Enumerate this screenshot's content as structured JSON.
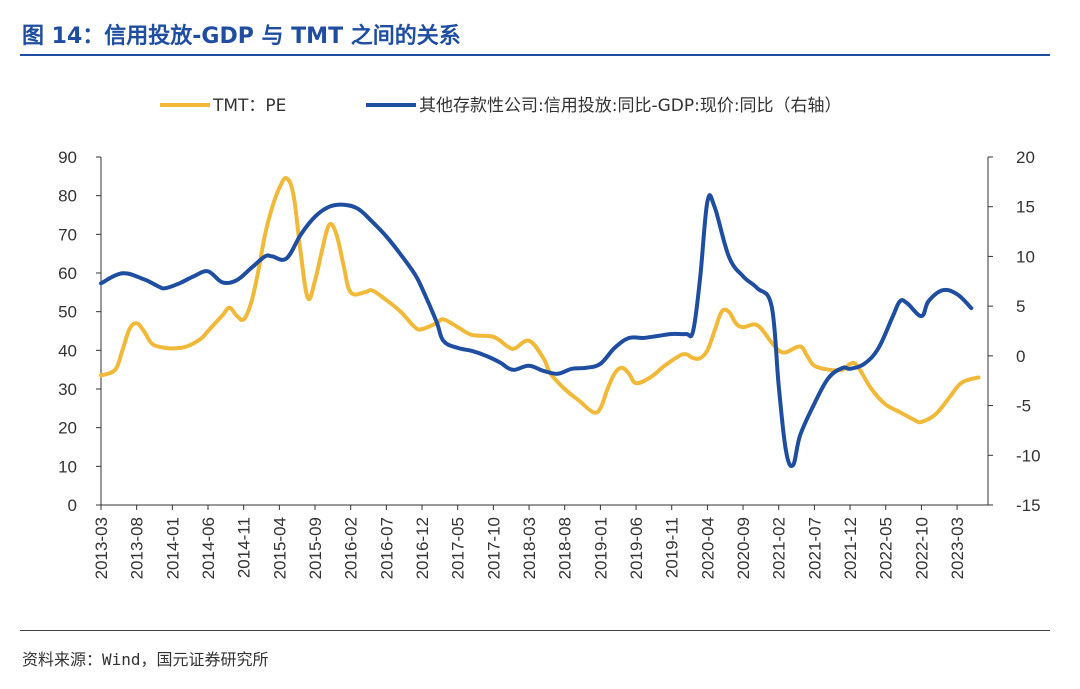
{
  "title": "图 14：信用投放-GDP 与 TMT 之间的关系",
  "source": "资料来源：Wind，国元证券研究所",
  "colors": {
    "pe": "#f0b93a",
    "credit": "#1f4ea0",
    "title": "#1f4ea0"
  },
  "chart_data": {
    "type": "line",
    "legend": [
      "TMT：PE",
      "其他存款性公司:信用投放:同比-GDP:现价:同比（右轴）"
    ],
    "legend_position": "top-center",
    "grid": false,
    "x_tick_labels": [
      "2013-03",
      "2013-08",
      "2014-01",
      "2014-06",
      "2014-11",
      "2015-04",
      "2015-09",
      "2016-02",
      "2016-07",
      "2016-12",
      "2017-05",
      "2017-10",
      "2018-03",
      "2018-08",
      "2019-01",
      "2019-06",
      "2019-11",
      "2020-04",
      "2020-09",
      "2021-02",
      "2021-07",
      "2021-12",
      "2022-05",
      "2022-10",
      "2023-03"
    ],
    "y_left": {
      "ylim": [
        0,
        90
      ],
      "ticks": [
        0,
        10,
        20,
        30,
        40,
        50,
        60,
        70,
        80,
        90
      ]
    },
    "y_right": {
      "ylim": [
        -15,
        20
      ],
      "ticks": [
        -15,
        -10,
        -5,
        0,
        5,
        10,
        15,
        20
      ]
    },
    "series": [
      {
        "name": "TMT：PE",
        "axis": "left",
        "points": [
          [
            "2013-03",
            33.5
          ],
          [
            "2013-05",
            35
          ],
          [
            "2013-06",
            40
          ],
          [
            "2013-07",
            45.5
          ],
          [
            "2013-08",
            47
          ],
          [
            "2013-09",
            45
          ],
          [
            "2013-10",
            42
          ],
          [
            "2013-11",
            41
          ],
          [
            "2014-01",
            40.5
          ],
          [
            "2014-03",
            41
          ],
          [
            "2014-05",
            43
          ],
          [
            "2014-06",
            45
          ],
          [
            "2014-08",
            49
          ],
          [
            "2014-09",
            51
          ],
          [
            "2014-10",
            49
          ],
          [
            "2014-11",
            48
          ],
          [
            "2014-12",
            52
          ],
          [
            "2015-01",
            60
          ],
          [
            "2015-02",
            70
          ],
          [
            "2015-03",
            77
          ],
          [
            "2015-04",
            82
          ],
          [
            "2015-05",
            84.5
          ],
          [
            "2015-06",
            80
          ],
          [
            "2015-07",
            65
          ],
          [
            "2015-08",
            53.5
          ],
          [
            "2015-09",
            58
          ],
          [
            "2015-10",
            66
          ],
          [
            "2015-11",
            72.5
          ],
          [
            "2015-12",
            70
          ],
          [
            "2016-01",
            62
          ],
          [
            "2016-02",
            55
          ],
          [
            "2016-04",
            55
          ],
          [
            "2016-05",
            55.5
          ],
          [
            "2016-07",
            53
          ],
          [
            "2016-09",
            50
          ],
          [
            "2016-11",
            46
          ],
          [
            "2016-12",
            45.5
          ],
          [
            "2017-02",
            47
          ],
          [
            "2017-03",
            48
          ],
          [
            "2017-05",
            46
          ],
          [
            "2017-07",
            44
          ],
          [
            "2017-10",
            43.5
          ],
          [
            "2017-12",
            41
          ],
          [
            "2018-01",
            40.5
          ],
          [
            "2018-03",
            42.5
          ],
          [
            "2018-05",
            38
          ],
          [
            "2018-06",
            34
          ],
          [
            "2018-08",
            30
          ],
          [
            "2018-10",
            27
          ],
          [
            "2018-12",
            24
          ],
          [
            "2019-01",
            25
          ],
          [
            "2019-02",
            30
          ],
          [
            "2019-03",
            34
          ],
          [
            "2019-04",
            35.5
          ],
          [
            "2019-05",
            34
          ],
          [
            "2019-06",
            31.5
          ],
          [
            "2019-08",
            33
          ],
          [
            "2019-10",
            36
          ],
          [
            "2019-12",
            38.5
          ],
          [
            "2020-01",
            39
          ],
          [
            "2020-02",
            38
          ],
          [
            "2020-03",
            38
          ],
          [
            "2020-04",
            40
          ],
          [
            "2020-05",
            45
          ],
          [
            "2020-06",
            50
          ],
          [
            "2020-07",
            50
          ],
          [
            "2020-08",
            47
          ],
          [
            "2020-09",
            46
          ],
          [
            "2020-11",
            46.5
          ],
          [
            "2021-01",
            42
          ],
          [
            "2021-02",
            40
          ],
          [
            "2021-03",
            39.5
          ],
          [
            "2021-05",
            41
          ],
          [
            "2021-06",
            38.5
          ],
          [
            "2021-07",
            36
          ],
          [
            "2021-09",
            35
          ],
          [
            "2021-11",
            35
          ],
          [
            "2021-12",
            36.5
          ],
          [
            "2022-01",
            36
          ],
          [
            "2022-03",
            30
          ],
          [
            "2022-05",
            26
          ],
          [
            "2022-07",
            24
          ],
          [
            "2022-09",
            22
          ],
          [
            "2022-10",
            21.5
          ],
          [
            "2022-12",
            23.5
          ],
          [
            "2023-02",
            28
          ],
          [
            "2023-03",
            30.5
          ],
          [
            "2023-04",
            32
          ],
          [
            "2023-06",
            33
          ]
        ]
      },
      {
        "name": "其他存款性公司:信用投放:同比-GDP:现价:同比（右轴）",
        "axis": "right",
        "points": [
          [
            "2013-03",
            7.3
          ],
          [
            "2013-06",
            8.3
          ],
          [
            "2013-09",
            7.7
          ],
          [
            "2013-11",
            7
          ],
          [
            "2013-12",
            6.8
          ],
          [
            "2014-02",
            7.3
          ],
          [
            "2014-04",
            8
          ],
          [
            "2014-06",
            8.5
          ],
          [
            "2014-08",
            7.4
          ],
          [
            "2014-10",
            7.6
          ],
          [
            "2014-12",
            8.8
          ],
          [
            "2015-02",
            10
          ],
          [
            "2015-03",
            10
          ],
          [
            "2015-05",
            9.8
          ],
          [
            "2015-07",
            12.2
          ],
          [
            "2015-09",
            14
          ],
          [
            "2015-11",
            15
          ],
          [
            "2016-01",
            15.2
          ],
          [
            "2016-03",
            14.8
          ],
          [
            "2016-05",
            13.5
          ],
          [
            "2016-07",
            12
          ],
          [
            "2016-09",
            10.2
          ],
          [
            "2016-11",
            8.2
          ],
          [
            "2016-12",
            6.8
          ],
          [
            "2017-02",
            3.5
          ],
          [
            "2017-03",
            1.5
          ],
          [
            "2017-05",
            0.8
          ],
          [
            "2017-07",
            0.5
          ],
          [
            "2017-09",
            0
          ],
          [
            "2017-11",
            -0.7
          ],
          [
            "2017-12",
            -1.2
          ],
          [
            "2018-01",
            -1.4
          ],
          [
            "2018-03",
            -1
          ],
          [
            "2018-05",
            -1.5
          ],
          [
            "2018-07",
            -1.8
          ],
          [
            "2018-09",
            -1.3
          ],
          [
            "2018-11",
            -1.2
          ],
          [
            "2019-01",
            -0.8
          ],
          [
            "2019-03",
            0.8
          ],
          [
            "2019-05",
            1.8
          ],
          [
            "2019-07",
            1.8
          ],
          [
            "2019-09",
            2
          ],
          [
            "2019-11",
            2.2
          ],
          [
            "2020-01",
            2.2
          ],
          [
            "2020-02",
            2.5
          ],
          [
            "2020-03",
            8
          ],
          [
            "2020-04",
            15.5
          ],
          [
            "2020-05",
            15
          ],
          [
            "2020-07",
            10
          ],
          [
            "2020-09",
            8
          ],
          [
            "2020-11",
            6.8
          ],
          [
            "2021-01",
            5
          ],
          [
            "2021-02",
            -3
          ],
          [
            "2021-03",
            -9.5
          ],
          [
            "2021-04",
            -11
          ],
          [
            "2021-05",
            -8
          ],
          [
            "2021-07",
            -4.8
          ],
          [
            "2021-09",
            -2.2
          ],
          [
            "2021-11",
            -1.2
          ],
          [
            "2021-12",
            -1.3
          ],
          [
            "2022-02",
            -0.8
          ],
          [
            "2022-04",
            0.8
          ],
          [
            "2022-06",
            4
          ],
          [
            "2022-07",
            5.5
          ],
          [
            "2022-08",
            5.3
          ],
          [
            "2022-10",
            4
          ],
          [
            "2022-11",
            5.5
          ],
          [
            "2023-01",
            6.6
          ],
          [
            "2023-03",
            6.2
          ],
          [
            "2023-05",
            4.8
          ]
        ]
      }
    ]
  }
}
